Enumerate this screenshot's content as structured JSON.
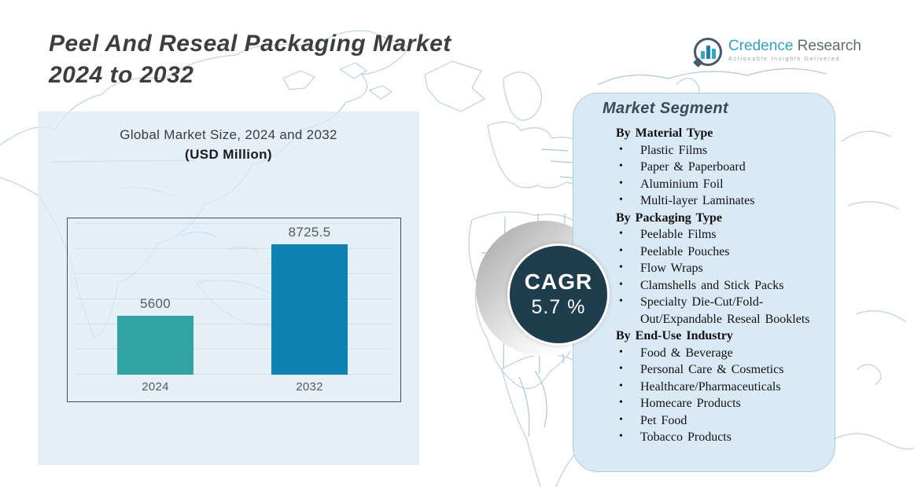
{
  "header": {
    "title_line1": "Peel And Reseal Packaging Market",
    "title_line2": "2024 to 2032"
  },
  "logo": {
    "icon": "bar-chart-bubble-icon",
    "brand_primary": "Credence",
    "brand_secondary": "Research",
    "tagline": "Actionable Insights Delivered",
    "brand_color": "#29a7c5",
    "secondary_color": "#5d6b74"
  },
  "chart_panel": {
    "subtitle_line1": "Global Market Size, 2024 and 2032",
    "subtitle_line2": "(USD Million)"
  },
  "chart_data": {
    "type": "bar",
    "title": "Global Market Size, 2024 and 2032 (USD Million)",
    "categories": [
      "2024",
      "2032"
    ],
    "values": [
      5600,
      8725.5
    ],
    "value_labels": [
      "5600",
      "8725.5"
    ],
    "bar_colors": [
      "#32a3a3",
      "#0e82b2"
    ],
    "unit": "USD Million",
    "ylim": [
      3000,
      9500
    ],
    "grid": true,
    "legend": "none"
  },
  "cagr": {
    "label": "CAGR",
    "value": "5.7 %",
    "circle_color": "#1e3e4d"
  },
  "segments_panel": {
    "title": "Market Segment",
    "groups": [
      {
        "heading": "By Material Type",
        "items": [
          "Plastic Films",
          "Paper & Paperboard",
          "Aluminium Foil",
          "Multi-layer Laminates"
        ]
      },
      {
        "heading": "By Packaging Type",
        "items": [
          "Peelable Films",
          "Peelable Pouches",
          "Flow Wraps",
          "Clamshells and Stick Packs",
          "Specialty Die-Cut/Fold-Out/Expandable Reseal Booklets"
        ]
      },
      {
        "heading": "By End-Use Industry",
        "items": [
          "Food & Beverage",
          "Personal Care & Cosmetics",
          "Healthcare/Pharmaceuticals",
          "Homecare Products",
          "Pet Food",
          "Tobacco Products"
        ]
      }
    ]
  }
}
